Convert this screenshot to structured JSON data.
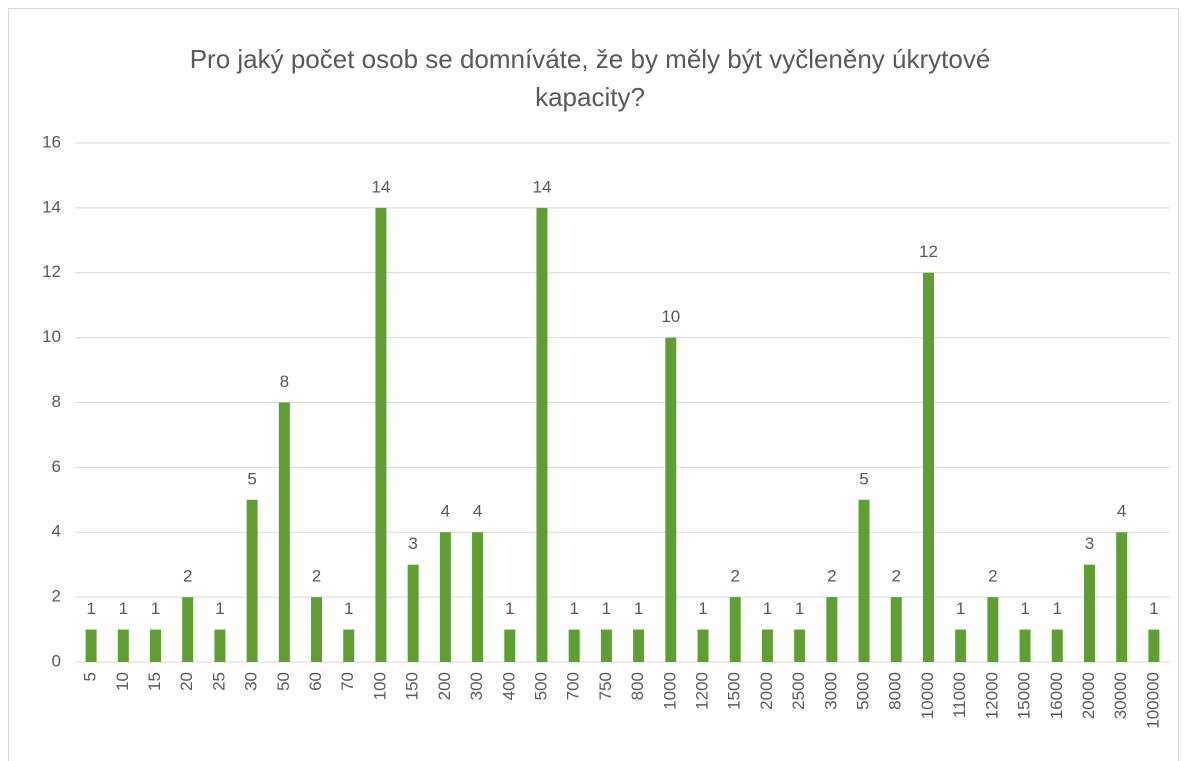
{
  "chart_data": {
    "type": "bar",
    "title": "Pro jaký počet osob se domníváte, že by měly být vyčleněny úkrytové kapacity?",
    "categories": [
      "5",
      "10",
      "15",
      "20",
      "25",
      "30",
      "50",
      "60",
      "70",
      "100",
      "150",
      "200",
      "300",
      "400",
      "500",
      "700",
      "750",
      "800",
      "1000",
      "1200",
      "1500",
      "2000",
      "2500",
      "3000",
      "5000",
      "8000",
      "10000",
      "11000",
      "12000",
      "15000",
      "16000",
      "20000",
      "30000",
      "100000"
    ],
    "values": [
      1,
      1,
      1,
      2,
      1,
      5,
      8,
      2,
      1,
      14,
      3,
      4,
      4,
      1,
      14,
      1,
      1,
      1,
      10,
      1,
      2,
      1,
      1,
      2,
      5,
      2,
      12,
      1,
      2,
      1,
      1,
      3,
      4,
      1
    ],
    "color": "#5e9e33",
    "ylim": [
      0,
      16
    ],
    "yticks": [
      0,
      2,
      4,
      6,
      8,
      10,
      12,
      14,
      16
    ],
    "grid": true
  }
}
